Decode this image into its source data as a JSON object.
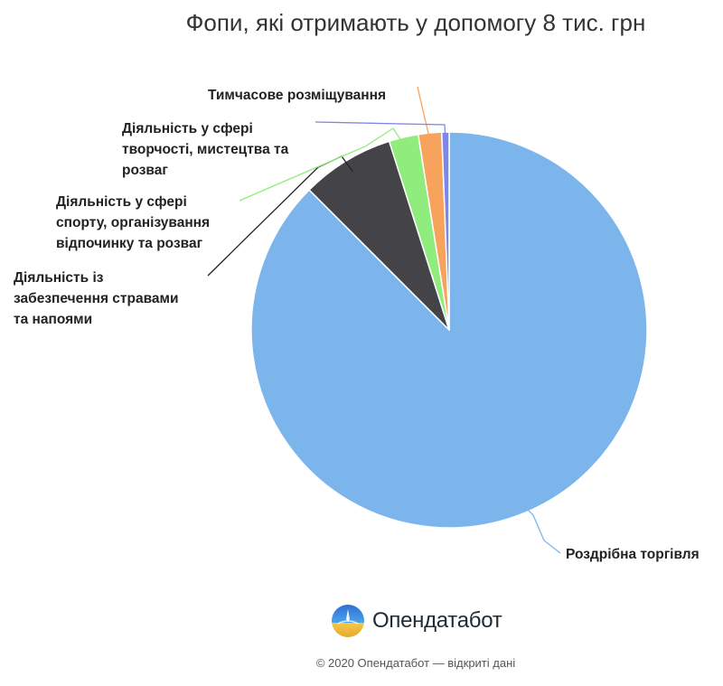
{
  "chart_data": {
    "type": "pie",
    "title": "Фопи, які отримають у допомогу 8 тис. грн",
    "slices": [
      {
        "label": "Роздрібна торгівля",
        "value": 87.5,
        "color": "#7cb5ec"
      },
      {
        "label": "Діяльність із забезпечення стравами та напоями",
        "value": 7.6,
        "color": "#434348"
      },
      {
        "label": "Діяльність у сфері спорту, організування відпочинку та розваг",
        "value": 2.4,
        "color": "#90ed7d"
      },
      {
        "label": "Діяльність у сфері творчості, мистецтва та розваг",
        "value": 1.9,
        "color": "#f7a35c"
      },
      {
        "label": "Тимчасове розміщування",
        "value": 0.6,
        "color": "#8085e9"
      }
    ]
  },
  "brand": {
    "name": "Опендатабот",
    "logo_icon": "opendatabot-logo-icon",
    "copyright": "© 2020 Опендатабот — відкриті дані"
  }
}
